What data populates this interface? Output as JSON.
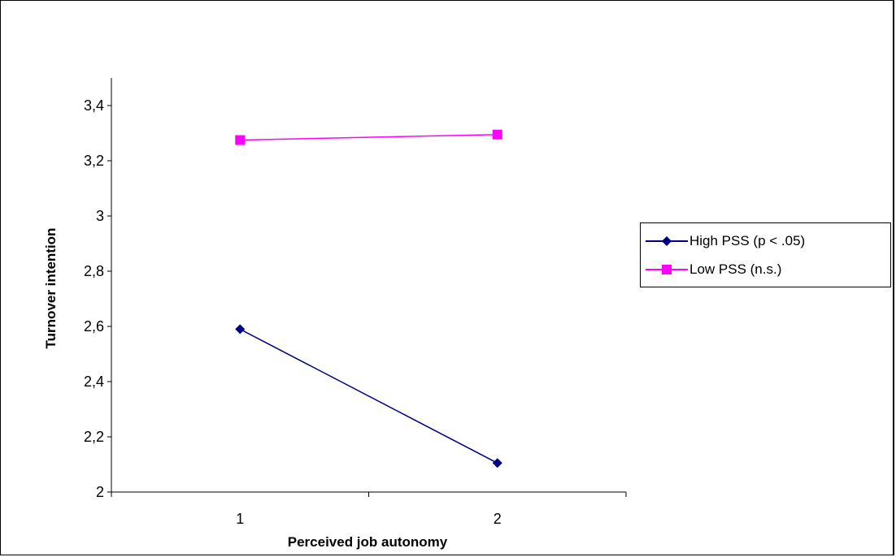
{
  "chart_data": {
    "type": "line",
    "xlabel": "Perceived  job autonomy",
    "ylabel": "Turnover intention",
    "categories": [
      "1",
      "2"
    ],
    "ylim": [
      2,
      3.5
    ],
    "yticks": [
      "2",
      "2,2",
      "2,4",
      "2,6",
      "2,8",
      "3",
      "3,2",
      "3,4"
    ],
    "ytick_values": [
      2,
      2.2,
      2.4,
      2.6,
      2.8,
      3,
      3.2,
      3.4
    ],
    "grid": false,
    "legend_position": "right",
    "series": [
      {
        "name": "High PSS (p < .05)",
        "values": [
          2.59,
          2.105
        ],
        "color": "#000080",
        "marker": "diamond"
      },
      {
        "name": "Low PSS (n.s.)",
        "values": [
          3.275,
          3.295
        ],
        "color": "#ff00ff",
        "marker": "square"
      }
    ]
  }
}
